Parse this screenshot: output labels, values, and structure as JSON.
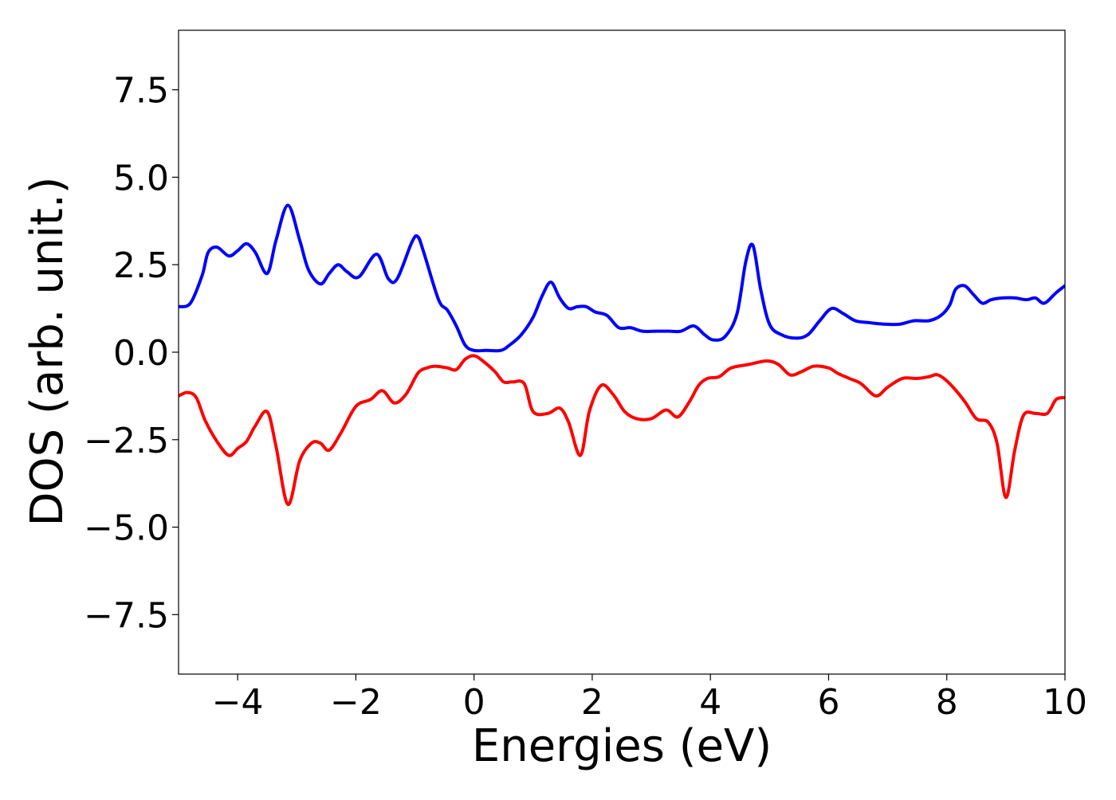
{
  "chart_data": {
    "type": "line",
    "title": "",
    "xlabel": "Energies (eV)",
    "ylabel": "DOS (arb. unit.)",
    "xlim": [
      -5,
      10
    ],
    "ylim": [
      -9.2,
      9.2
    ],
    "xticks": [
      -4,
      -2,
      0,
      2,
      4,
      6,
      8,
      10
    ],
    "xtick_labels": [
      "−4",
      "−2",
      "0",
      "2",
      "4",
      "6",
      "8",
      "10"
    ],
    "yticks": [
      7.5,
      5.0,
      2.5,
      0.0,
      -2.5,
      -5.0,
      -7.5
    ],
    "ytick_labels": [
      "7.5",
      "5.0",
      "2.5",
      "0.0",
      "−2.5",
      "−5.0",
      "−7.5"
    ],
    "grid": false,
    "legend": "none",
    "series": [
      {
        "color": "#0000ff",
        "x": [
          -5,
          -4.8,
          -4.6,
          -4.5,
          -4.35,
          -4.15,
          -4.0,
          -3.85,
          -3.7,
          -3.5,
          -3.35,
          -3.15,
          -2.95,
          -2.8,
          -2.6,
          -2.45,
          -2.3,
          -2.15,
          -1.95,
          -1.65,
          -1.45,
          -1.3,
          -1.05,
          -0.95,
          -0.85,
          -0.6,
          -0.45,
          -0.3,
          -0.15,
          0.0,
          0.2,
          0.45,
          0.6,
          0.8,
          1.0,
          1.15,
          1.3,
          1.45,
          1.6,
          1.75,
          1.9,
          2.05,
          2.25,
          2.45,
          2.65,
          2.85,
          3.1,
          3.3,
          3.5,
          3.72,
          3.9,
          4.05,
          4.25,
          4.45,
          4.6,
          4.72,
          4.85,
          5.0,
          5.2,
          5.45,
          5.65,
          5.85,
          6.05,
          6.25,
          6.45,
          6.65,
          6.95,
          7.2,
          7.45,
          7.7,
          7.9,
          8.05,
          8.15,
          8.3,
          8.45,
          8.6,
          8.75,
          8.95,
          9.15,
          9.35,
          9.5,
          9.65,
          9.85,
          10.0
        ],
        "values": [
          1.3,
          1.4,
          2.2,
          2.85,
          3.0,
          2.75,
          2.9,
          3.1,
          2.85,
          2.25,
          3.2,
          4.2,
          3.2,
          2.35,
          1.95,
          2.25,
          2.5,
          2.3,
          2.15,
          2.8,
          2.1,
          2.1,
          3.15,
          3.3,
          2.85,
          1.5,
          1.2,
          0.75,
          0.2,
          0.05,
          0.05,
          0.05,
          0.2,
          0.5,
          1.0,
          1.6,
          2.0,
          1.55,
          1.25,
          1.3,
          1.3,
          1.15,
          1.05,
          0.7,
          0.7,
          0.6,
          0.6,
          0.6,
          0.6,
          0.75,
          0.5,
          0.35,
          0.45,
          1.1,
          2.6,
          3.05,
          1.8,
          0.8,
          0.5,
          0.4,
          0.5,
          0.9,
          1.25,
          1.1,
          0.9,
          0.85,
          0.8,
          0.8,
          0.9,
          0.9,
          1.05,
          1.35,
          1.8,
          1.9,
          1.65,
          1.4,
          1.5,
          1.55,
          1.55,
          1.5,
          1.55,
          1.4,
          1.7,
          1.9
        ]
      },
      {
        "color": "#ff0000",
        "x": [
          -5,
          -4.85,
          -4.7,
          -4.55,
          -4.35,
          -4.15,
          -4.0,
          -3.85,
          -3.7,
          -3.5,
          -3.35,
          -3.15,
          -2.95,
          -2.75,
          -2.6,
          -2.45,
          -2.25,
          -2.0,
          -1.75,
          -1.55,
          -1.35,
          -1.15,
          -0.95,
          -0.8,
          -0.65,
          -0.45,
          -0.3,
          -0.15,
          0.0,
          0.15,
          0.35,
          0.5,
          0.65,
          0.85,
          1.0,
          1.25,
          1.45,
          1.6,
          1.8,
          1.95,
          2.15,
          2.35,
          2.55,
          2.75,
          3.0,
          3.25,
          3.45,
          3.65,
          3.8,
          3.95,
          4.15,
          4.35,
          4.65,
          4.95,
          5.15,
          5.35,
          5.55,
          5.75,
          6.0,
          6.15,
          6.35,
          6.55,
          6.8,
          7.0,
          7.25,
          7.5,
          7.7,
          7.85,
          8.05,
          8.3,
          8.5,
          8.7,
          8.85,
          9.0,
          9.15,
          9.3,
          9.5,
          9.7,
          9.85,
          10.0
        ],
        "values": [
          -1.25,
          -1.15,
          -1.3,
          -1.95,
          -2.55,
          -2.95,
          -2.75,
          -2.55,
          -2.1,
          -1.7,
          -2.7,
          -4.35,
          -3.1,
          -2.6,
          -2.6,
          -2.8,
          -2.3,
          -1.55,
          -1.35,
          -1.1,
          -1.45,
          -1.2,
          -0.6,
          -0.45,
          -0.4,
          -0.45,
          -0.5,
          -0.2,
          -0.1,
          -0.25,
          -0.55,
          -0.85,
          -0.85,
          -0.9,
          -1.7,
          -1.75,
          -1.6,
          -2.0,
          -2.95,
          -1.7,
          -0.95,
          -1.2,
          -1.7,
          -1.9,
          -1.9,
          -1.65,
          -1.85,
          -1.4,
          -0.95,
          -0.75,
          -0.7,
          -0.45,
          -0.35,
          -0.25,
          -0.35,
          -0.65,
          -0.55,
          -0.4,
          -0.45,
          -0.6,
          -0.75,
          -0.9,
          -1.25,
          -1.0,
          -0.75,
          -0.75,
          -0.7,
          -0.65,
          -0.9,
          -1.4,
          -1.9,
          -2.0,
          -2.6,
          -4.15,
          -2.8,
          -1.8,
          -1.75,
          -1.75,
          -1.35,
          -1.3
        ]
      }
    ]
  }
}
